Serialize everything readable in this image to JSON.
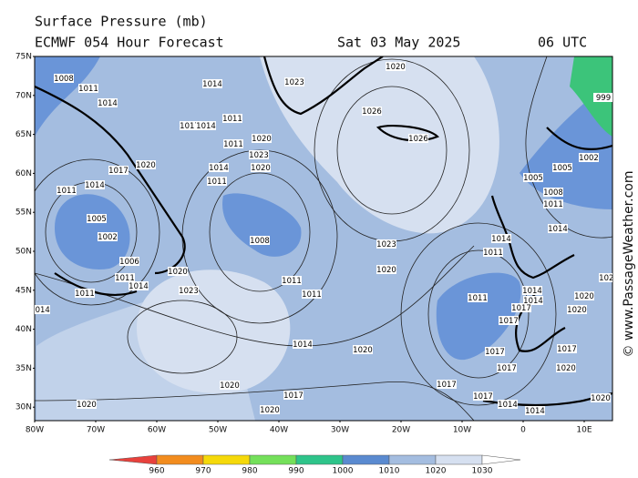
{
  "header": {
    "title": "Surface Pressure (mb)",
    "model": "ECMWF 054 Hour Forecast",
    "date": "Sat 03 May 2025",
    "time": "06 UTC"
  },
  "map": {
    "lat_labels": [
      "75N",
      "70N",
      "65N",
      "60N",
      "55N",
      "50N",
      "45N",
      "40N",
      "35N",
      "30N"
    ],
    "lon_labels": [
      "80W",
      "70W",
      "60W",
      "50W",
      "40W",
      "30W",
      "20W",
      "10W",
      "0",
      "10E"
    ],
    "isobar_labels": [
      "1008",
      "1011",
      "1014",
      "1014",
      "1011",
      "1017",
      "1014",
      "1011",
      "1020",
      "1023",
      "1014",
      "1020",
      "1011",
      "1017",
      "1020",
      "1011",
      "1014",
      "1005",
      "1002",
      "1008",
      "1011",
      "1011",
      "1006",
      "1011",
      "1014",
      "1020",
      "1011",
      "1023",
      "1014",
      "1017",
      "1020",
      "1020",
      "1017",
      "1014",
      "1020",
      "1020",
      "1023",
      "1020",
      "1026",
      "1026",
      "1023",
      "1020",
      "1017",
      "1005",
      "1005",
      "1008",
      "1011",
      "1014",
      "1002",
      "1014",
      "1011",
      "1014",
      "1014",
      "1020",
      "1020",
      "1017",
      "1017",
      "1017",
      "1017",
      "1020",
      "1017",
      "1014",
      "1014",
      "1020",
      "1017",
      "1011",
      "999",
      "1014",
      "1020"
    ]
  },
  "colorbar": {
    "levels": [
      960,
      970,
      980,
      990,
      1000,
      1010,
      1020,
      1030
    ],
    "colors": [
      "#e8413c",
      "#f28c1e",
      "#f5d90a",
      "#74e05a",
      "#2ec48a",
      "#5a8ad0",
      "#a4bde0",
      "#d6e0f0",
      "#ffffff"
    ]
  },
  "watermark": "© www.PassageWeather.com"
}
